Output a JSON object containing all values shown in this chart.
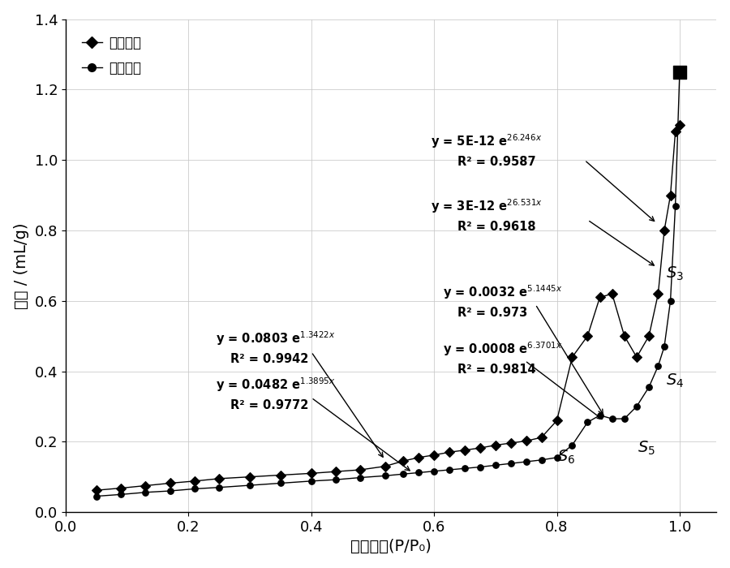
{
  "title": "",
  "xlabel": "相对压力(P/P₀)",
  "ylabel": "体积 / (mL/g)",
  "xlim": [
    0.0,
    1.05
  ],
  "ylim": [
    0.0,
    1.4
  ],
  "xticks": [
    0,
    0.2,
    0.4,
    0.6,
    0.8,
    1
  ],
  "yticks": [
    0,
    0.2,
    0.4,
    0.6,
    0.8,
    1.0,
    1.2,
    1.4
  ],
  "desorption_x": [
    0.05,
    0.09,
    0.13,
    0.17,
    0.21,
    0.25,
    0.3,
    0.35,
    0.4,
    0.44,
    0.48,
    0.52,
    0.55,
    0.575,
    0.6,
    0.625,
    0.65,
    0.675,
    0.7,
    0.725,
    0.75,
    0.775,
    0.8,
    0.825,
    0.85,
    0.87,
    0.89,
    0.91,
    0.93,
    0.95,
    0.965,
    0.975,
    0.985,
    0.993,
    1.0
  ],
  "desorption_y": [
    0.062,
    0.068,
    0.075,
    0.082,
    0.088,
    0.095,
    0.1,
    0.105,
    0.11,
    0.115,
    0.12,
    0.13,
    0.145,
    0.155,
    0.162,
    0.17,
    0.176,
    0.182,
    0.19,
    0.196,
    0.202,
    0.212,
    0.26,
    0.44,
    0.5,
    0.61,
    0.62,
    0.5,
    0.44,
    0.5,
    0.62,
    0.8,
    0.9,
    1.08,
    1.1
  ],
  "adsorption_x": [
    0.05,
    0.09,
    0.13,
    0.17,
    0.21,
    0.25,
    0.3,
    0.35,
    0.4,
    0.44,
    0.48,
    0.52,
    0.55,
    0.575,
    0.6,
    0.625,
    0.65,
    0.675,
    0.7,
    0.725,
    0.75,
    0.775,
    0.8,
    0.825,
    0.85,
    0.87,
    0.89,
    0.91,
    0.93,
    0.95,
    0.965,
    0.975,
    0.985,
    0.993,
    1.0
  ],
  "adsorption_y": [
    0.045,
    0.05,
    0.056,
    0.06,
    0.066,
    0.07,
    0.076,
    0.082,
    0.088,
    0.092,
    0.098,
    0.103,
    0.108,
    0.112,
    0.116,
    0.12,
    0.124,
    0.128,
    0.133,
    0.138,
    0.143,
    0.148,
    0.155,
    0.19,
    0.255,
    0.275,
    0.265,
    0.265,
    0.3,
    0.355,
    0.415,
    0.47,
    0.6,
    0.87,
    1.25
  ],
  "square_x": [
    1.0
  ],
  "square_y": [
    1.25
  ],
  "bg_color": "#ffffff",
  "line_color": "#000000",
  "grid_color": "#c8c8c8",
  "legend_desorption": "解吸曲线",
  "legend_adsorption": "吸附曲线"
}
